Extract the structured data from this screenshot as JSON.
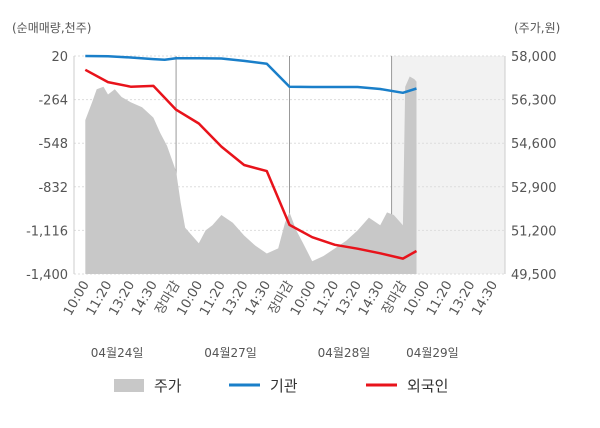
{
  "chart_data": {
    "type": "line",
    "left_axis_unit": "(순매매량,천주)",
    "right_axis_unit": "(주가,원)",
    "left_axis": {
      "ticks": [
        "20",
        "-264",
        "-548",
        "-832",
        "-1,116",
        "-1,400"
      ],
      "range": [
        -1400,
        20
      ]
    },
    "right_axis": {
      "ticks": [
        "58,000",
        "56,300",
        "54,600",
        "52,900",
        "51,200",
        "49,500"
      ],
      "range": [
        49500,
        58000
      ]
    },
    "time_labels": [
      "10:00",
      "11:20",
      "13:20",
      "14:30",
      "장마감",
      "10:00",
      "11:20",
      "13:20",
      "14:30",
      "장마감",
      "10:00",
      "11:20",
      "13:20",
      "14:30",
      "장마감",
      "10:00",
      "11:20",
      "13:20",
      "14:30"
    ],
    "close_label_color": "#d0021b",
    "dates": [
      "04월24일",
      "04월27일",
      "04월28일",
      "04월29일"
    ],
    "legend": [
      "주가",
      "기관",
      "외국인"
    ],
    "colors": {
      "price": "#c8c8c8",
      "institution": "#1a7fc9",
      "foreign": "#e8131b"
    },
    "series_institution": {
      "name": "기관",
      "points": [
        [
          0,
          20
        ],
        [
          1,
          18
        ],
        [
          2,
          10
        ],
        [
          3,
          0
        ],
        [
          3.5,
          -5
        ],
        [
          4,
          5
        ],
        [
          5,
          5
        ],
        [
          6,
          4
        ],
        [
          7,
          -12
        ],
        [
          8,
          -30
        ],
        [
          9,
          -180
        ],
        [
          10,
          -182
        ],
        [
          11,
          -182
        ],
        [
          12,
          -182
        ],
        [
          13,
          -195
        ],
        [
          14,
          -220
        ],
        [
          14.6,
          -192
        ]
      ]
    },
    "series_foreign": {
      "name": "외국인",
      "points": [
        [
          0,
          -70
        ],
        [
          1,
          -150
        ],
        [
          2,
          -180
        ],
        [
          3,
          -175
        ],
        [
          4,
          -330
        ],
        [
          5,
          -420
        ],
        [
          6,
          -570
        ],
        [
          7,
          -690
        ],
        [
          8,
          -730
        ],
        [
          9,
          -1080
        ],
        [
          10,
          -1160
        ],
        [
          11,
          -1210
        ],
        [
          12,
          -1235
        ],
        [
          13,
          -1265
        ],
        [
          14,
          -1300
        ],
        [
          14.6,
          -1250
        ]
      ]
    },
    "series_price": {
      "name": "주가",
      "points": [
        [
          0,
          55500
        ],
        [
          0.3,
          56200
        ],
        [
          0.5,
          56700
        ],
        [
          0.8,
          56800
        ],
        [
          1,
          56500
        ],
        [
          1.3,
          56700
        ],
        [
          1.6,
          56400
        ],
        [
          2,
          56200
        ],
        [
          2.5,
          56000
        ],
        [
          3,
          55600
        ],
        [
          3.3,
          55000
        ],
        [
          3.6,
          54500
        ],
        [
          4,
          53500
        ],
        [
          4.2,
          52300
        ],
        [
          4.4,
          51300
        ],
        [
          4.7,
          51000
        ],
        [
          5,
          50700
        ],
        [
          5.3,
          51200
        ],
        [
          5.6,
          51400
        ],
        [
          6,
          51800
        ],
        [
          6.5,
          51500
        ],
        [
          7,
          51000
        ],
        [
          7.5,
          50600
        ],
        [
          8,
          50300
        ],
        [
          8.5,
          50500
        ],
        [
          8.8,
          51500
        ],
        [
          9,
          51900
        ],
        [
          9.3,
          51200
        ],
        [
          9.6,
          50700
        ],
        [
          10,
          50000
        ],
        [
          10.5,
          50200
        ],
        [
          11,
          50500
        ],
        [
          11.5,
          50800
        ],
        [
          12,
          51200
        ],
        [
          12.5,
          51700
        ],
        [
          13,
          51400
        ],
        [
          13.3,
          51900
        ],
        [
          13.6,
          51800
        ],
        [
          14,
          51400
        ],
        [
          14.1,
          56800
        ],
        [
          14.3,
          57200
        ],
        [
          14.5,
          57100
        ],
        [
          14.6,
          57000
        ]
      ]
    }
  }
}
